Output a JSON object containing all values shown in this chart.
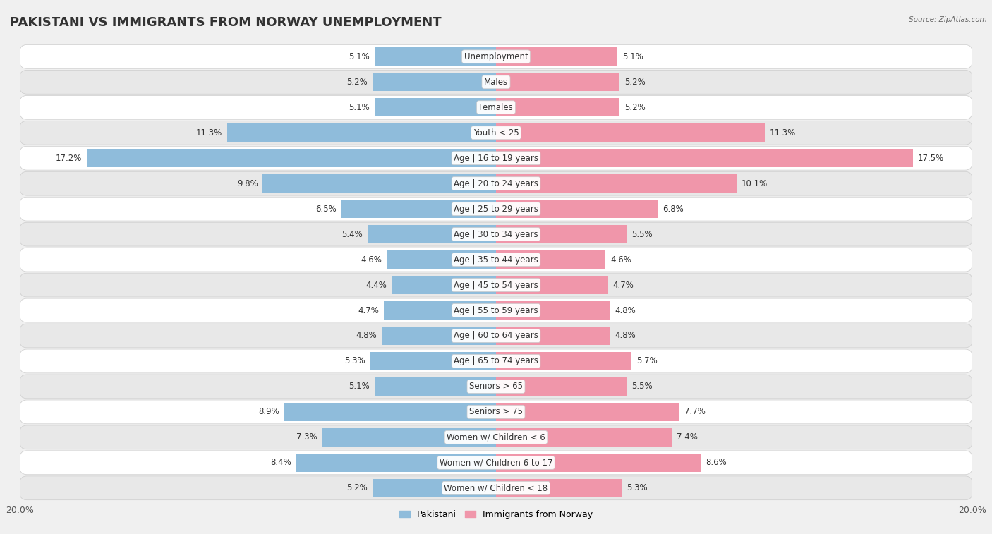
{
  "title": "PAKISTANI VS IMMIGRANTS FROM NORWAY UNEMPLOYMENT",
  "source": "Source: ZipAtlas.com",
  "categories": [
    "Unemployment",
    "Males",
    "Females",
    "Youth < 25",
    "Age | 16 to 19 years",
    "Age | 20 to 24 years",
    "Age | 25 to 29 years",
    "Age | 30 to 34 years",
    "Age | 35 to 44 years",
    "Age | 45 to 54 years",
    "Age | 55 to 59 years",
    "Age | 60 to 64 years",
    "Age | 65 to 74 years",
    "Seniors > 65",
    "Seniors > 75",
    "Women w/ Children < 6",
    "Women w/ Children 6 to 17",
    "Women w/ Children < 18"
  ],
  "pakistani": [
    5.1,
    5.2,
    5.1,
    11.3,
    17.2,
    9.8,
    6.5,
    5.4,
    4.6,
    4.4,
    4.7,
    4.8,
    5.3,
    5.1,
    8.9,
    7.3,
    8.4,
    5.2
  ],
  "norway": [
    5.1,
    5.2,
    5.2,
    11.3,
    17.5,
    10.1,
    6.8,
    5.5,
    4.6,
    4.7,
    4.8,
    4.8,
    5.7,
    5.5,
    7.7,
    7.4,
    8.6,
    5.3
  ],
  "pakistani_color": "#8fbcdb",
  "norway_color": "#f096aa",
  "max_val": 20.0,
  "label_pakistani": "Pakistani",
  "label_norway": "Immigrants from Norway",
  "bg_color": "#f0f0f0",
  "row_color_even": "#ffffff",
  "row_color_odd": "#e8e8e8",
  "bar_height": 0.72,
  "title_fontsize": 13,
  "axis_fontsize": 9,
  "value_fontsize": 8.5,
  "category_fontsize": 8.5,
  "legend_fontsize": 9
}
